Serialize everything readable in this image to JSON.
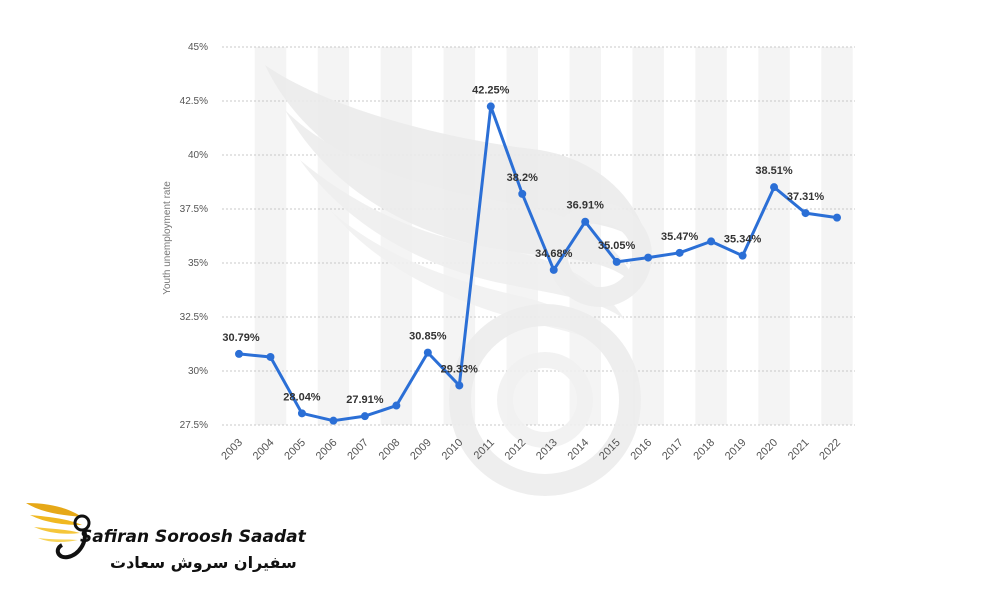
{
  "chart_data": {
    "type": "line",
    "ylabel": "Youth unemployment rate",
    "ylim": [
      27.5,
      45
    ],
    "y_ticks": [
      "27.5%",
      "30%",
      "32.5%",
      "35%",
      "37.5%",
      "40%",
      "42.5%",
      "45%"
    ],
    "y_tick_values": [
      27.5,
      30,
      32.5,
      35,
      37.5,
      40,
      42.5,
      45
    ],
    "categories": [
      "2003",
      "2004",
      "2005",
      "2006",
      "2007",
      "2008",
      "2009",
      "2010",
      "2011",
      "2012",
      "2013",
      "2014",
      "2015",
      "2016",
      "2017",
      "2018",
      "2019",
      "2020",
      "2021",
      "2022"
    ],
    "values": [
      30.79,
      30.65,
      28.04,
      27.7,
      27.91,
      28.4,
      30.85,
      29.33,
      42.25,
      38.2,
      34.68,
      36.91,
      35.05,
      35.25,
      35.47,
      36.0,
      35.34,
      38.51,
      37.31,
      37.1
    ],
    "data_labels": [
      "30.79%",
      "",
      "28.04%",
      "",
      "27.91%",
      "",
      "30.85%",
      "29.33%",
      "42.25%",
      "38.2%",
      "34.68%",
      "36.91%",
      "35.05%",
      "",
      "35.47%",
      "",
      "35.34%",
      "38.51%",
      "37.31%",
      ""
    ],
    "line_color": "#2b6fd6",
    "band_color": "#f4f4f4",
    "grid": true
  },
  "branding": {
    "name_en": "Safiran Soroosh Saadat",
    "name_fa": "سفیران سروش سعادت"
  }
}
